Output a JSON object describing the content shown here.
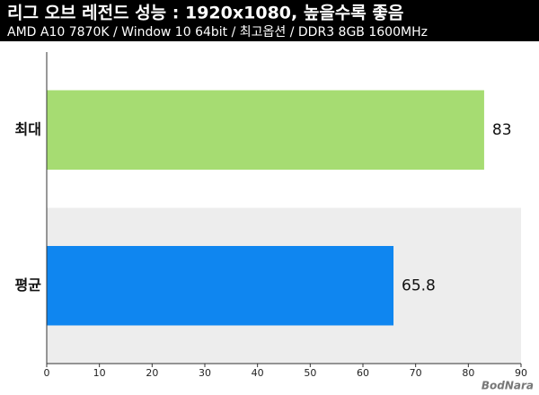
{
  "chart_data": {
    "type": "hbar",
    "title": "리그 오브 레전드 성능 : 1920x1080, 높을수록 좋음",
    "subtitle": "AMD A10 7870K / Window 10 64bit / 최고옵션 / DDR3 8GB 1600MHz",
    "categories": [
      "최대",
      "평균"
    ],
    "values": [
      83,
      65.8
    ],
    "colors": [
      "#a6dc72",
      "#0f86f0"
    ],
    "xlim": [
      0,
      90
    ],
    "xticks": [
      0,
      10,
      20,
      30,
      40,
      50,
      60,
      70,
      80,
      90
    ],
    "watermark": "BodNara"
  }
}
